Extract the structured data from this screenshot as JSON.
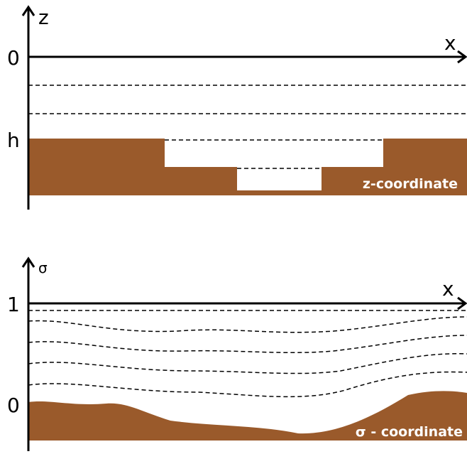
{
  "z_panel": {
    "axis_vertical": "z",
    "axis_horizontal": "x",
    "tick_top": "0",
    "tick_bottom": "h",
    "caption": "z-coordinate"
  },
  "sigma_panel": {
    "axis_vertical": "σ",
    "axis_horizontal": "x",
    "tick_top": "1",
    "tick_bottom": "0",
    "caption": "σ - coordinate"
  }
}
